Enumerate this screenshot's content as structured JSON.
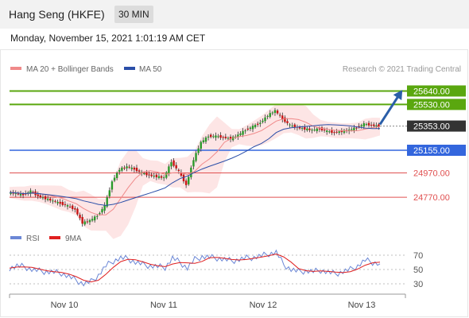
{
  "header": {
    "title": "Hang Seng (HKFE)",
    "interval": "30 MIN",
    "datetime": "Monday, November 15, 2021 1:01:19 AM CET"
  },
  "legend": {
    "items": [
      {
        "label": "MA 20 + Bollinger Bands",
        "color": "#f08a8a"
      },
      {
        "label": "MA 50",
        "color": "#2a4ea8"
      }
    ],
    "source": "Research © 2021 Trading Central"
  },
  "colors": {
    "resistance": "#5aa70f",
    "pivot": "#3366dd",
    "support": "#e05050",
    "current": "#333333",
    "bollinger": "#fde0e0",
    "ma20": "#f08a8a",
    "ma50": "#2a4ea8",
    "candle_up": "#2a9a2a",
    "candle_down": "#c81414",
    "arrow": "#2a5ea8",
    "rsi": "#6b87d6",
    "rsi_ma": "#e02020"
  },
  "chart_data": [
    {
      "type": "candlestick",
      "x_ticks": [
        "Nov 10",
        "Nov 11",
        "Nov 12",
        "Nov 13"
      ],
      "ylim": [
        24550,
        25760
      ],
      "levels": [
        {
          "value": 25640.0,
          "label": "25640.00",
          "kind": "resistance"
        },
        {
          "value": 25530.0,
          "label": "25530.00",
          "kind": "resistance"
        },
        {
          "value": 25353.0,
          "label": "25353.00",
          "kind": "current"
        },
        {
          "value": 25155.0,
          "label": "25155.00",
          "kind": "pivot"
        },
        {
          "value": 24970.0,
          "label": "24970.00",
          "kind": "support"
        },
        {
          "value": 24770.0,
          "label": "24770.00",
          "kind": "support"
        }
      ],
      "price_path": [
        24810,
        24800,
        24790,
        24820,
        24780,
        24760,
        24740,
        24720,
        24700,
        24670,
        24560,
        24580,
        24620,
        24700,
        24900,
        25000,
        25020,
        25000,
        24970,
        24950,
        24940,
        24930,
        25060,
        24980,
        24870,
        25080,
        25220,
        25270,
        25270,
        25260,
        25250,
        25280,
        25320,
        25350,
        25380,
        25440,
        25480,
        25410,
        25360,
        25340,
        25330,
        25320,
        25330,
        25310,
        25300,
        25310,
        25320,
        25340,
        25370,
        25360,
        25353
      ]
    },
    {
      "type": "line",
      "name": "RSI",
      "legend": [
        {
          "label": "RSI",
          "color": "#6b87d6"
        },
        {
          "label": "9MA",
          "color": "#e02020"
        }
      ],
      "y_ticks": [
        70,
        50,
        30
      ],
      "ylim": [
        20,
        80
      ],
      "rsi_path": [
        52,
        55,
        54,
        50,
        48,
        47,
        46,
        45,
        40,
        35,
        30,
        33,
        42,
        55,
        62,
        66,
        65,
        60,
        57,
        55,
        54,
        53,
        66,
        60,
        52,
        64,
        68,
        67,
        66,
        64,
        62,
        64,
        66,
        67,
        69,
        72,
        74,
        57,
        50,
        47,
        48,
        47,
        49,
        46,
        44,
        47,
        50,
        55,
        63,
        60,
        58
      ]
    }
  ]
}
